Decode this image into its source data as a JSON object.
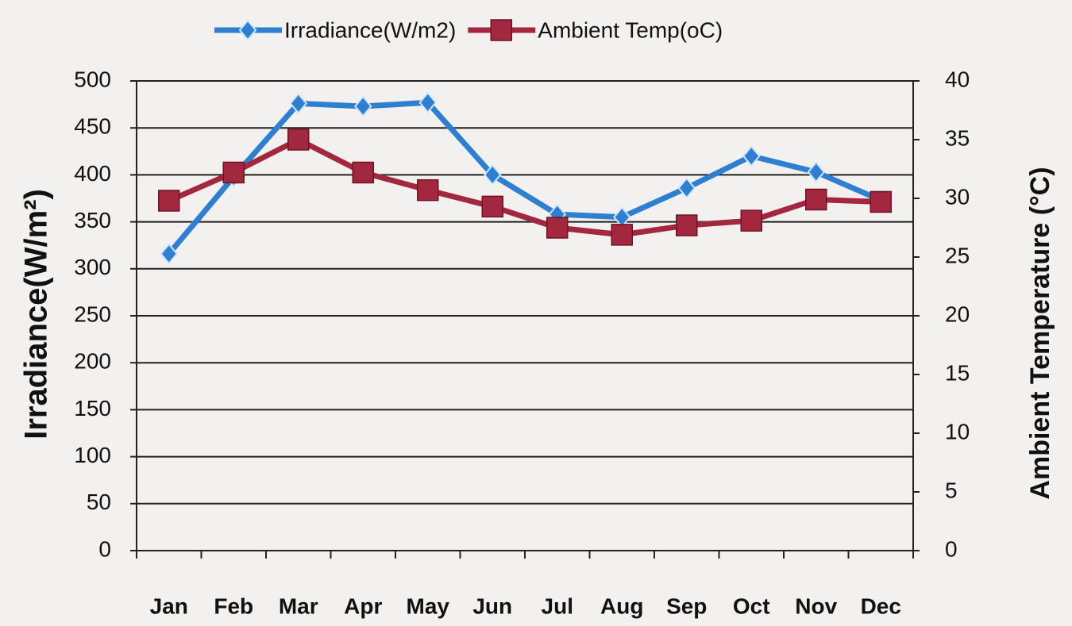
{
  "chart_data": {
    "type": "line",
    "y_label": "Irradiance(W/m²)",
    "y2_label": "Ambient Temperature (°C)",
    "categories": [
      "Jan",
      "Feb",
      "Mar",
      "Apr",
      "May",
      "Jun",
      "Jul",
      "Aug",
      "Sep",
      "Oct",
      "Nov",
      "Dec"
    ],
    "series": [
      {
        "name": "Irradiance(W/m2)",
        "color": "#2f7fd0",
        "marker": "diamond",
        "values": [
          316,
          398,
          476,
          473,
          477,
          400,
          358,
          355,
          386,
          420,
          403,
          373
        ]
      },
      {
        "name": "Ambient Temp(oC)",
        "color": "#a3283f",
        "marker": "square",
        "axis": "y2",
        "values": [
          29.8,
          32.2,
          35,
          32.2,
          30.7,
          29.3,
          27.5,
          26.9,
          27.7,
          28.1,
          29.9,
          29.7
        ]
      }
    ],
    "ylim": [
      0,
      500
    ],
    "yticks": [
      0,
      50,
      100,
      150,
      200,
      250,
      300,
      350,
      400,
      450,
      500
    ],
    "y2lim": [
      0,
      40
    ],
    "y2ticks": [
      0,
      5,
      10,
      15,
      20,
      25,
      30,
      35,
      40
    ],
    "grid": true
  }
}
